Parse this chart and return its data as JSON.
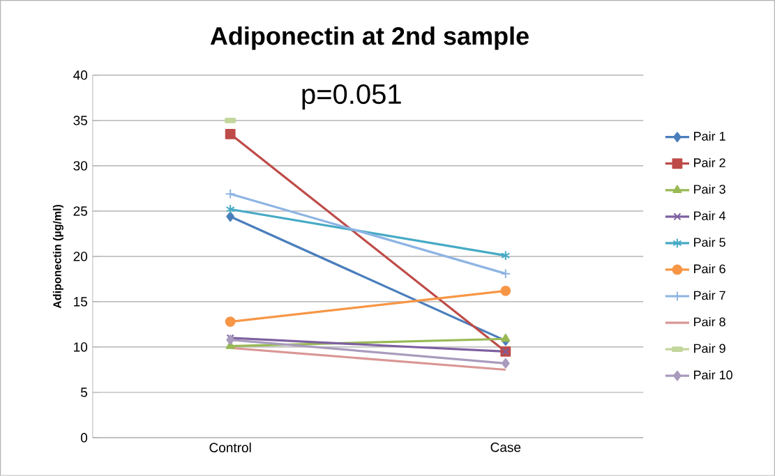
{
  "chart_data": {
    "type": "line",
    "title": "Adiponectin at 2nd sample",
    "ylabel": "Adiponectin (µg/ml)",
    "categories": [
      "Control",
      "Case"
    ],
    "ylim": [
      0,
      40
    ],
    "yticks": [
      0,
      5,
      10,
      15,
      20,
      25,
      30,
      35,
      40
    ],
    "grid": "y",
    "legend": "right",
    "annotations": [
      "p=0.051"
    ],
    "series": [
      {
        "name": "Pair 1",
        "color": "#4a7ebb",
        "marker": "diamond",
        "values": [
          24.4,
          10.7
        ]
      },
      {
        "name": "Pair 2",
        "color": "#be4b48",
        "marker": "square",
        "values": [
          33.5,
          9.5
        ]
      },
      {
        "name": "Pair 3",
        "color": "#98b954",
        "marker": "triangle",
        "values": [
          10.1,
          10.9
        ]
      },
      {
        "name": "Pair 4",
        "color": "#7d60a0",
        "marker": "cross",
        "values": [
          11.0,
          9.5
        ]
      },
      {
        "name": "Pair 5",
        "color": "#46aac5",
        "marker": "cross",
        "values": [
          25.2,
          20.1
        ]
      },
      {
        "name": "Pair 6",
        "color": "#f79646",
        "marker": "circle",
        "values": [
          12.8,
          16.2
        ]
      },
      {
        "name": "Pair 7",
        "color": "#8eb4e3",
        "marker": "plus",
        "values": [
          26.9,
          18.1
        ]
      },
      {
        "name": "Pair 8",
        "color": "#d99694",
        "marker": "none",
        "values": [
          9.9,
          7.5
        ]
      },
      {
        "name": "Pair 9",
        "color": "#c3d69b",
        "marker": "square",
        "values": [
          35,
          null
        ]
      },
      {
        "name": "Pair 10",
        "color": "#a99bbd",
        "marker": "diamond",
        "values": [
          10.8,
          8.2
        ]
      }
    ]
  }
}
